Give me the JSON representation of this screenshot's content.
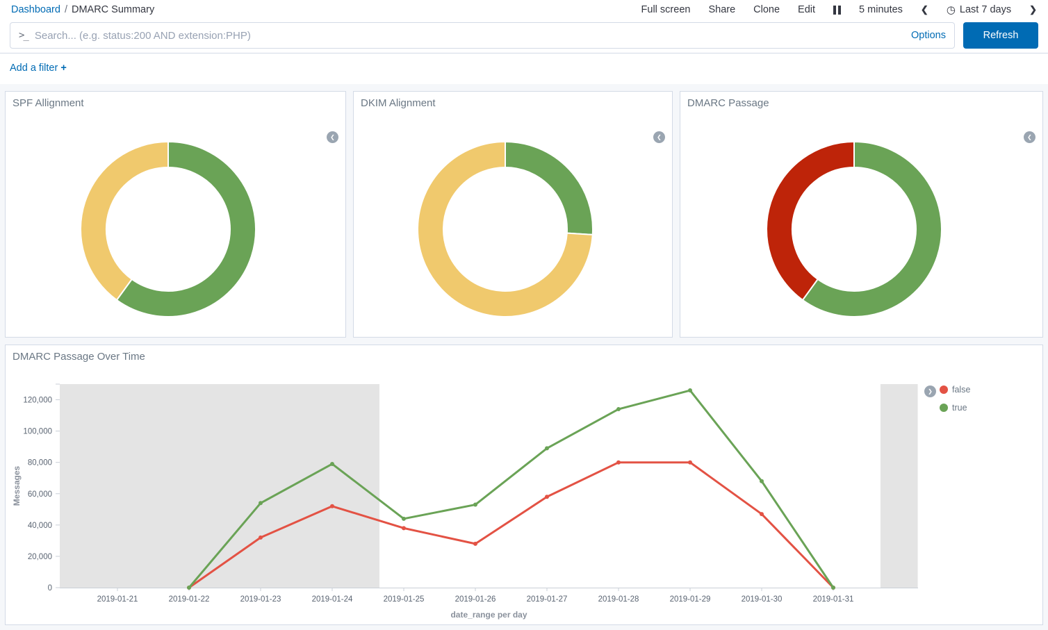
{
  "header": {
    "breadcrumb": {
      "root": "Dashboard",
      "separator": "/",
      "current": "DMARC Summary"
    },
    "menu": {
      "full_screen": "Full screen",
      "share": "Share",
      "clone": "Clone",
      "edit": "Edit"
    },
    "refresh_interval": "5 minutes",
    "time_range": "Last 7 days"
  },
  "query_bar": {
    "value": "",
    "placeholder": "Search... (e.g. status:200 AND extension:PHP)",
    "options_label": "Options",
    "refresh_label": "Refresh"
  },
  "filter_bar": {
    "add_filter_label": "Add a filter",
    "plus": "+"
  },
  "colors": {
    "accent_blue": "#006BB4",
    "green": "#6AA356",
    "yellow": "#F0C96D",
    "dark_red": "#BE2409",
    "line_red": "#E35244",
    "endzone_gray": "#E4E4E4",
    "axis_line": "#C9CFD7",
    "tick_text": "#5A6472",
    "axis_title_text": "#8A919C"
  },
  "chart_data": [
    {
      "id": "spf",
      "type": "pie",
      "donut": true,
      "title": "SPF Allignment",
      "legend": "collapsed",
      "slices": [
        {
          "label": "green-segment",
          "percent": 60,
          "color": "#6AA356"
        },
        {
          "label": "yellow-segment",
          "percent": 40,
          "color": "#F0C96D"
        }
      ]
    },
    {
      "id": "dkim",
      "type": "pie",
      "donut": true,
      "title": "DKIM Alignment",
      "legend": "collapsed",
      "slices": [
        {
          "label": "green-segment",
          "percent": 26,
          "color": "#6AA356"
        },
        {
          "label": "yellow-segment",
          "percent": 74,
          "color": "#F0C96D"
        }
      ]
    },
    {
      "id": "dmarc",
      "type": "pie",
      "donut": true,
      "title": "DMARC Passage",
      "legend": "collapsed",
      "slices": [
        {
          "label": "green-segment",
          "percent": 60,
          "color": "#6AA356"
        },
        {
          "label": "red-segment",
          "percent": 40,
          "color": "#BE2409"
        }
      ]
    },
    {
      "id": "dmarc_over_time",
      "type": "line",
      "title": "DMARC Passage Over Time",
      "xlabel": "date_range per day",
      "ylabel": "Messages",
      "ylim": [
        0,
        130000
      ],
      "yticks": [
        0,
        20000,
        40000,
        60000,
        80000,
        100000,
        120000
      ],
      "x": [
        "2019-01-21",
        "2019-01-22",
        "2019-01-23",
        "2019-01-24",
        "2019-01-25",
        "2019-01-26",
        "2019-01-27",
        "2019-01-28",
        "2019-01-29",
        "2019-01-30",
        "2019-01-31"
      ],
      "series": [
        {
          "name": "false",
          "color": "#E35244",
          "values": [
            null,
            0,
            32000,
            52000,
            38000,
            28000,
            58000,
            80000,
            80000,
            47000,
            0
          ]
        },
        {
          "name": "true",
          "color": "#6AA356",
          "values": [
            null,
            0,
            54000,
            79000,
            44000,
            53000,
            89000,
            114000,
            126000,
            68000,
            0
          ]
        }
      ],
      "legend_position": "right",
      "grid": false,
      "shaded_x_ranges_day_units": [
        [
          -0.81,
          3.66
        ],
        [
          10.66,
          11.18
        ]
      ]
    }
  ]
}
